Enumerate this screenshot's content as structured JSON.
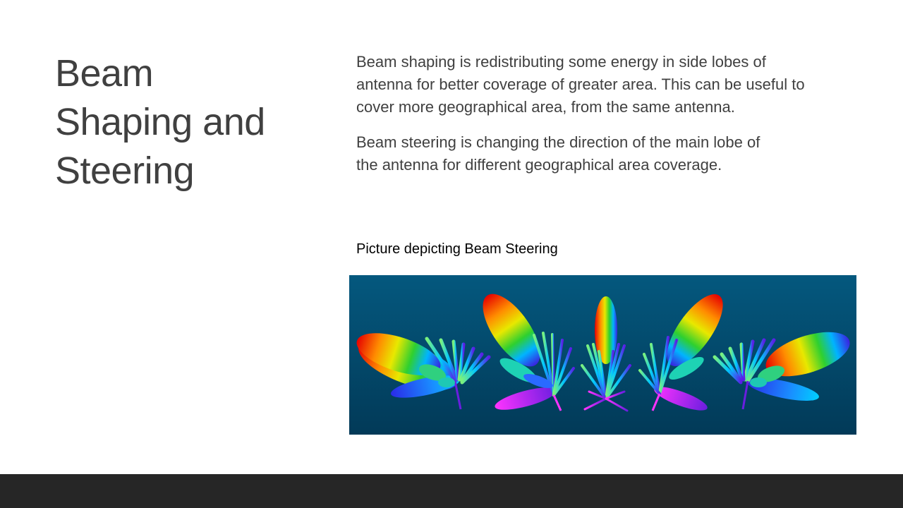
{
  "slide": {
    "title_lines": [
      "Beam",
      "Shaping and",
      "Steering"
    ],
    "paragraph1_lines": [
      "Beam shaping is redistributing some energy in side lobes of",
      "antenna for better coverage of greater area. This can be useful to",
      "cover more geographical area, from the same antenna."
    ],
    "paragraph2_lines": [
      "Beam steering is changing the direction of the main lobe of",
      "the antenna for different geographical area coverage."
    ],
    "caption": "Picture depicting Beam Steering"
  },
  "colors": {
    "background": "#ffffff",
    "title_text": "#404040",
    "body_text": "#404040",
    "caption_text": "#000000",
    "footer_bar": "#262626",
    "image_background_top": "#04587e",
    "image_background_bottom": "#023a58"
  },
  "image": {
    "description_icon": "radiation-pattern-illustration"
  }
}
